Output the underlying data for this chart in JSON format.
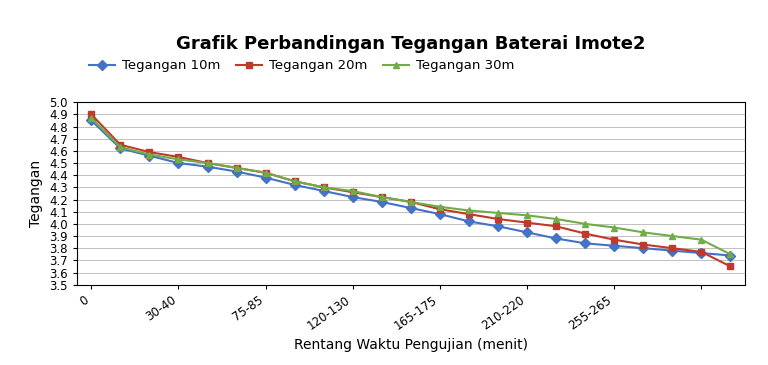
{
  "title": "Grafik Perbandingan Tegangan Baterai Imote2",
  "xlabel": "Rentang Waktu Pengujian (menit)",
  "ylabel": "Tegangan",
  "x_tick_labels": [
    "0",
    "30-40",
    "75-85",
    "120-130",
    "165-175",
    "210-220",
    "255-265",
    ""
  ],
  "ylim": [
    3.5,
    5.0
  ],
  "yticks": [
    3.5,
    3.6,
    3.7,
    3.8,
    3.9,
    4.0,
    4.1,
    4.2,
    4.3,
    4.4,
    4.5,
    4.6,
    4.7,
    4.8,
    4.9,
    5.0
  ],
  "series": [
    {
      "label": "Tegangan 10m",
      "color": "#4472C4",
      "marker": "D",
      "values": [
        4.85,
        4.62,
        4.56,
        4.5,
        4.47,
        4.43,
        4.38,
        4.32,
        4.27,
        4.22,
        4.18,
        4.13,
        4.08,
        4.02,
        3.98,
        3.93,
        3.88,
        3.84,
        3.82,
        3.8,
        3.78,
        3.76,
        3.74
      ]
    },
    {
      "label": "Tegangan 20m",
      "color": "#C0392B",
      "marker": "s",
      "values": [
        4.9,
        4.65,
        4.59,
        4.55,
        4.5,
        4.46,
        4.42,
        4.35,
        4.3,
        4.26,
        4.22,
        4.18,
        4.12,
        4.08,
        4.04,
        4.01,
        3.98,
        3.92,
        3.87,
        3.83,
        3.8,
        3.77,
        3.65
      ]
    },
    {
      "label": "Tegangan 30m",
      "color": "#70AD47",
      "marker": "^",
      "values": [
        4.87,
        4.63,
        4.57,
        4.53,
        4.5,
        4.46,
        4.42,
        4.35,
        4.3,
        4.27,
        4.22,
        4.18,
        4.14,
        4.11,
        4.09,
        4.07,
        4.04,
        4.0,
        3.97,
        3.93,
        3.9,
        3.87,
        3.75
      ]
    }
  ],
  "background_color": "#FFFFFF",
  "grid_color": "#C0C0C0",
  "title_fontsize": 13,
  "axis_label_fontsize": 10,
  "tick_fontsize": 8.5,
  "legend_fontsize": 9.5
}
